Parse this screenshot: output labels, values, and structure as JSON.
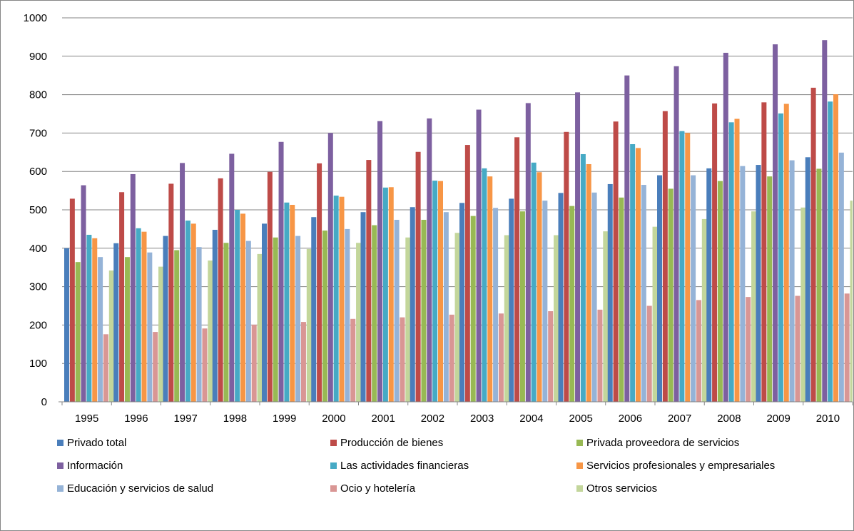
{
  "chart_data": {
    "type": "bar",
    "title": "",
    "xlabel": "",
    "ylabel": "",
    "ylim": [
      0,
      1000
    ],
    "yticks": [
      "0",
      "100",
      "200",
      "300",
      "400",
      "500",
      "600",
      "700",
      "800",
      "900",
      "1000"
    ],
    "grid": true,
    "legend_position": "bottom",
    "categories": [
      "1995",
      "1996",
      "1997",
      "1998",
      "1999",
      "2000",
      "2001",
      "2002",
      "2003",
      "2004",
      "2005",
      "2006",
      "2007",
      "2008",
      "2009",
      "2010"
    ],
    "series": [
      {
        "name": "Privado total",
        "color": "#4a7ebb",
        "values": [
          400,
          413,
          432,
          448,
          464,
          481,
          494,
          507,
          518,
          529,
          544,
          567,
          590,
          608,
          617,
          637
        ]
      },
      {
        "name": "Producción de bienes",
        "color": "#be4b48",
        "values": [
          529,
          546,
          568,
          582,
          599,
          621,
          630,
          651,
          669,
          689,
          703,
          730,
          757,
          777,
          780,
          818
        ]
      },
      {
        "name": "Privada proveedora de servicios",
        "color": "#98b954",
        "values": [
          364,
          377,
          395,
          414,
          428,
          446,
          460,
          474,
          484,
          496,
          510,
          532,
          555,
          575,
          587,
          607
        ]
      },
      {
        "name": "Información",
        "color": "#7d60a0",
        "values": [
          564,
          593,
          622,
          646,
          677,
          700,
          731,
          738,
          761,
          778,
          806,
          850,
          874,
          909,
          931,
          942
        ]
      },
      {
        "name": "Las actividades financieras",
        "color": "#46aac5",
        "values": [
          435,
          452,
          472,
          500,
          519,
          537,
          558,
          576,
          608,
          623,
          645,
          671,
          705,
          728,
          751,
          782
        ]
      },
      {
        "name": "Servicios profesionales y empresariales",
        "color": "#f79646",
        "values": [
          426,
          443,
          464,
          490,
          513,
          534,
          559,
          575,
          587,
          598,
          619,
          661,
          700,
          737,
          776,
          801
        ]
      },
      {
        "name": "Educación y servicios de salud",
        "color": "#95b3d7",
        "values": [
          377,
          389,
          403,
          419,
          432,
          450,
          474,
          494,
          505,
          524,
          545,
          565,
          590,
          614,
          629,
          649
        ]
      },
      {
        "name": "Ocio y hotelería",
        "color": "#d99694",
        "values": [
          176,
          182,
          191,
          201,
          208,
          216,
          220,
          227,
          230,
          236,
          240,
          250,
          265,
          273,
          276,
          282
        ]
      },
      {
        "name": "Otros servicios",
        "color": "#c3d69b",
        "values": [
          342,
          352,
          368,
          385,
          398,
          414,
          428,
          440,
          434,
          434,
          444,
          456,
          476,
          496,
          506,
          524
        ]
      }
    ]
  }
}
